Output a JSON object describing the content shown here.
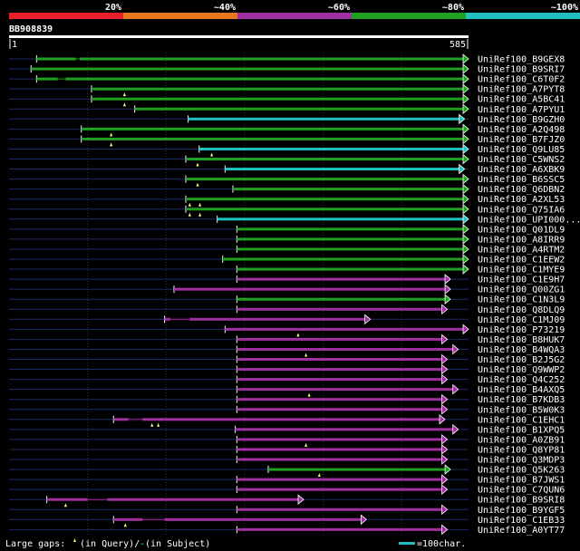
{
  "query_id": "BB908839",
  "query_length": 585,
  "scale_start": "1",
  "scale_end": "585",
  "identity_bins": [
    {
      "label": "20%",
      "color": "#e8202c"
    },
    {
      "label": "~40%",
      "color": "#e87820"
    },
    {
      "label": "~60%",
      "color": "#a030a0"
    },
    {
      "label": "~80%",
      "color": "#20a020"
    },
    {
      "label": "~100%",
      "color": "#20c0c0"
    }
  ],
  "legend": {
    "large_gaps": "Large gaps:",
    "in_query": "(in Query)/",
    "gap_dash": "-",
    "in_subject": " (in Subject)",
    "scale_bar": "=100char."
  },
  "hits": [
    {
      "name": "UniRef100_B9GEX8",
      "start": 35,
      "end": 585,
      "color": "#20a020",
      "gaps_s": [
        [
          85,
          90
        ]
      ],
      "gaps_q": []
    },
    {
      "name": "UniRef100_B9SRI7",
      "start": 28,
      "end": 585,
      "color": "#20a020",
      "gaps_s": [],
      "gaps_q": []
    },
    {
      "name": "UniRef100_C6T0F2",
      "start": 35,
      "end": 585,
      "color": "#20a020",
      "gaps_s": [
        [
          62,
          72
        ]
      ],
      "gaps_q": []
    },
    {
      "name": "UniRef100_A7PYT8",
      "start": 105,
      "end": 585,
      "color": "#20a020",
      "gaps_s": [],
      "gaps_q": [
        147
      ]
    },
    {
      "name": "UniRef100_A5BC41",
      "start": 105,
      "end": 585,
      "color": "#20a020",
      "gaps_s": [],
      "gaps_q": [
        147
      ]
    },
    {
      "name": "UniRef100_A7PYU1",
      "start": 160,
      "end": 585,
      "color": "#20a020",
      "gaps_s": [],
      "gaps_q": []
    },
    {
      "name": "UniRef100_B9GZH0",
      "start": 228,
      "end": 580,
      "color": "#20c0c0",
      "gaps_s": [],
      "gaps_q": []
    },
    {
      "name": "UniRef100_A2Q498",
      "start": 92,
      "end": 585,
      "color": "#20a020",
      "gaps_s": [],
      "gaps_q": [
        130
      ]
    },
    {
      "name": "UniRef100_B7FJZ0",
      "start": 92,
      "end": 585,
      "color": "#20a020",
      "gaps_s": [],
      "gaps_q": [
        130
      ]
    },
    {
      "name": "UniRef100_Q9LU85",
      "start": 242,
      "end": 585,
      "color": "#20c0c0",
      "gaps_s": [],
      "gaps_q": [
        258
      ]
    },
    {
      "name": "UniRef100_C5WNS2",
      "start": 225,
      "end": 585,
      "color": "#20a020",
      "gaps_s": [],
      "gaps_q": [
        240
      ]
    },
    {
      "name": "UniRef100_A6XBK9",
      "start": 275,
      "end": 580,
      "color": "#20c0c0",
      "gaps_s": [],
      "gaps_q": []
    },
    {
      "name": "UniRef100_B6SSC5",
      "start": 225,
      "end": 585,
      "color": "#20a020",
      "gaps_s": [],
      "gaps_q": [
        240
      ]
    },
    {
      "name": "UniRef100_Q6DBN2",
      "start": 285,
      "end": 585,
      "color": "#20a020",
      "gaps_s": [],
      "gaps_q": []
    },
    {
      "name": "UniRef100_A2XL53",
      "start": 225,
      "end": 585,
      "color": "#20a020",
      "gaps_s": [],
      "gaps_q": [
        230,
        243
      ]
    },
    {
      "name": "UniRef100_Q75IA6",
      "start": 225,
      "end": 585,
      "color": "#20a020",
      "gaps_s": [],
      "gaps_q": [
        230,
        243
      ]
    },
    {
      "name": "UniRef100_UPI000...",
      "start": 265,
      "end": 585,
      "color": "#20c0c0",
      "gaps_s": [],
      "gaps_q": []
    },
    {
      "name": "UniRef100_Q01DL9",
      "start": 290,
      "end": 585,
      "color": "#20a020",
      "gaps_s": [],
      "gaps_q": []
    },
    {
      "name": "UniRef100_A8IRR9",
      "start": 290,
      "end": 585,
      "color": "#20a020",
      "gaps_s": [],
      "gaps_q": []
    },
    {
      "name": "UniRef100_A4RTM2",
      "start": 290,
      "end": 585,
      "color": "#20a020",
      "gaps_s": [],
      "gaps_q": []
    },
    {
      "name": "UniRef100_C1EEW2",
      "start": 272,
      "end": 585,
      "color": "#20a020",
      "gaps_s": [],
      "gaps_q": []
    },
    {
      "name": "UniRef100_C1MYE9",
      "start": 290,
      "end": 585,
      "color": "#20a020",
      "gaps_s": [],
      "gaps_q": []
    },
    {
      "name": "UniRef100_C1E9H7",
      "start": 290,
      "end": 562,
      "color": "#a030a0",
      "gaps_s": [],
      "gaps_q": []
    },
    {
      "name": "UniRef100_Q00ZG1",
      "start": 210,
      "end": 562,
      "color": "#a030a0",
      "gaps_s": [],
      "gaps_q": []
    },
    {
      "name": "UniRef100_C1N3L9",
      "start": 290,
      "end": 562,
      "color": "#20a020",
      "gaps_s": [],
      "gaps_q": []
    },
    {
      "name": "UniRef100_Q8DLQ9",
      "start": 290,
      "end": 558,
      "color": "#a030a0",
      "gaps_s": [],
      "gaps_q": []
    },
    {
      "name": "UniRef100_C1MJ09",
      "start": 198,
      "end": 460,
      "color": "#a030a0",
      "gaps_s": [
        [
          205,
          230
        ]
      ],
      "gaps_q": []
    },
    {
      "name": "UniRef100_P73219",
      "start": 275,
      "end": 585,
      "color": "#a030a0",
      "gaps_s": [],
      "gaps_q": [
        368
      ]
    },
    {
      "name": "UniRef100_B8HUK7",
      "start": 290,
      "end": 558,
      "color": "#a030a0",
      "gaps_s": [],
      "gaps_q": []
    },
    {
      "name": "UniRef100_B4WQA3",
      "start": 290,
      "end": 572,
      "color": "#a030a0",
      "gaps_s": [],
      "gaps_q": [
        378
      ]
    },
    {
      "name": "UniRef100_B2J5G2",
      "start": 290,
      "end": 558,
      "color": "#a030a0",
      "gaps_s": [],
      "gaps_q": []
    },
    {
      "name": "UniRef100_Q9WWP2",
      "start": 290,
      "end": 558,
      "color": "#a030a0",
      "gaps_s": [],
      "gaps_q": []
    },
    {
      "name": "UniRef100_Q4C252",
      "start": 290,
      "end": 558,
      "color": "#a030a0",
      "gaps_s": [],
      "gaps_q": []
    },
    {
      "name": "UniRef100_B4AXQ5",
      "start": 290,
      "end": 572,
      "color": "#a030a0",
      "gaps_s": [],
      "gaps_q": [
        382
      ]
    },
    {
      "name": "UniRef100_B7KDB3",
      "start": 290,
      "end": 558,
      "color": "#a030a0",
      "gaps_s": [],
      "gaps_q": []
    },
    {
      "name": "UniRef100_B5W0K3",
      "start": 290,
      "end": 558,
      "color": "#a030a0",
      "gaps_s": [],
      "gaps_q": []
    },
    {
      "name": "UniRef100_C1EHC1",
      "start": 133,
      "end": 555,
      "color": "#a030a0",
      "gaps_s": [
        [
          152,
          170
        ]
      ],
      "gaps_q": [
        182,
        190
      ]
    },
    {
      "name": "UniRef100_B1XPQ5",
      "start": 288,
      "end": 572,
      "color": "#a030a0",
      "gaps_s": [],
      "gaps_q": []
    },
    {
      "name": "UniRef100_A0ZB91",
      "start": 290,
      "end": 558,
      "color": "#a030a0",
      "gaps_s": [],
      "gaps_q": [
        378
      ]
    },
    {
      "name": "UniRef100_Q8YP81",
      "start": 290,
      "end": 558,
      "color": "#a030a0",
      "gaps_s": [],
      "gaps_q": []
    },
    {
      "name": "UniRef100_Q3MDP3",
      "start": 290,
      "end": 558,
      "color": "#a030a0",
      "gaps_s": [],
      "gaps_q": []
    },
    {
      "name": "UniRef100_Q5K263",
      "start": 330,
      "end": 562,
      "color": "#20a020",
      "gaps_s": [],
      "gaps_q": [
        395
      ]
    },
    {
      "name": "UniRef100_B7JWS1",
      "start": 290,
      "end": 558,
      "color": "#a030a0",
      "gaps_s": [],
      "gaps_q": []
    },
    {
      "name": "UniRef100_C7QUN6",
      "start": 290,
      "end": 558,
      "color": "#a030a0",
      "gaps_s": [],
      "gaps_q": []
    },
    {
      "name": "UniRef100_B9SRI8",
      "start": 48,
      "end": 375,
      "color": "#a030a0",
      "gaps_s": [
        [
          100,
          125
        ]
      ],
      "gaps_q": [
        72
      ]
    },
    {
      "name": "UniRef100_B9YGF5",
      "start": 290,
      "end": 558,
      "color": "#a030a0",
      "gaps_s": [],
      "gaps_q": []
    },
    {
      "name": "UniRef100_C1EB33",
      "start": 133,
      "end": 455,
      "color": "#a030a0",
      "gaps_s": [
        [
          170,
          198
        ]
      ],
      "gaps_q": [
        148
      ]
    },
    {
      "name": "UniRef100_A0YT77",
      "start": 290,
      "end": 558,
      "color": "#a030a0",
      "gaps_s": [],
      "gaps_q": []
    }
  ]
}
